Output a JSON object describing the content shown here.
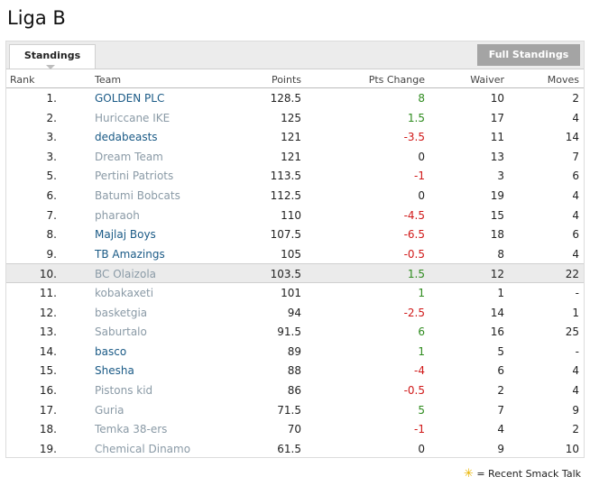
{
  "page": {
    "title": "Liga B"
  },
  "tabs": {
    "active": "Standings",
    "full_button": "Full Standings"
  },
  "columns": {
    "rank": "Rank",
    "team": "Team",
    "points": "Points",
    "pts_change": "Pts Change",
    "waiver": "Waiver",
    "moves": "Moves"
  },
  "colors": {
    "link": "#1a5a86",
    "dim": "#8a9aa6",
    "positive": "#2e8b1e",
    "negative": "#d01818"
  },
  "rows": [
    {
      "rank": "1.",
      "team": "GOLDEN PLC",
      "style": "link",
      "points": "128.5",
      "change": "8",
      "dir": "pos",
      "waiver": "10",
      "moves": "2"
    },
    {
      "rank": "2.",
      "team": "Huriccane IKE",
      "style": "dim",
      "points": "125",
      "change": "1.5",
      "dir": "pos",
      "waiver": "17",
      "moves": "4"
    },
    {
      "rank": "3.",
      "team": "dedabeasts",
      "style": "link",
      "points": "121",
      "change": "-3.5",
      "dir": "neg",
      "waiver": "11",
      "moves": "14"
    },
    {
      "rank": "3.",
      "team": "Dream Team",
      "style": "dim",
      "points": "121",
      "change": "0",
      "dir": "zero",
      "waiver": "13",
      "moves": "7"
    },
    {
      "rank": "5.",
      "team": "Pertini Patriots",
      "style": "dim",
      "points": "113.5",
      "change": "-1",
      "dir": "neg",
      "waiver": "3",
      "moves": "6"
    },
    {
      "rank": "6.",
      "team": "Batumi Bobcats",
      "style": "dim",
      "points": "112.5",
      "change": "0",
      "dir": "zero",
      "waiver": "19",
      "moves": "4"
    },
    {
      "rank": "7.",
      "team": "pharaoh",
      "style": "dim",
      "points": "110",
      "change": "-4.5",
      "dir": "neg",
      "waiver": "15",
      "moves": "4"
    },
    {
      "rank": "8.",
      "team": "Majlaj Boys",
      "style": "link",
      "points": "107.5",
      "change": "-6.5",
      "dir": "neg",
      "waiver": "18",
      "moves": "6"
    },
    {
      "rank": "9.",
      "team": "TB Amazings",
      "style": "link",
      "points": "105",
      "change": "-0.5",
      "dir": "neg",
      "waiver": "8",
      "moves": "4"
    },
    {
      "rank": "10.",
      "team": "BC Olaizola",
      "style": "dim",
      "points": "103.5",
      "change": "1.5",
      "dir": "pos",
      "waiver": "12",
      "moves": "22",
      "highlight": true
    },
    {
      "rank": "11.",
      "team": "kobakaxeti",
      "style": "dim",
      "points": "101",
      "change": "1",
      "dir": "pos",
      "waiver": "1",
      "moves": "-"
    },
    {
      "rank": "12.",
      "team": "basketgia",
      "style": "dim",
      "points": "94",
      "change": "-2.5",
      "dir": "neg",
      "waiver": "14",
      "moves": "1"
    },
    {
      "rank": "13.",
      "team": "Saburtalo",
      "style": "dim",
      "points": "91.5",
      "change": "6",
      "dir": "pos",
      "waiver": "16",
      "moves": "25"
    },
    {
      "rank": "14.",
      "team": "basco",
      "style": "link",
      "points": "89",
      "change": "1",
      "dir": "pos",
      "waiver": "5",
      "moves": "-"
    },
    {
      "rank": "15.",
      "team": "Shesha",
      "style": "link",
      "points": "88",
      "change": "-4",
      "dir": "neg",
      "waiver": "6",
      "moves": "4"
    },
    {
      "rank": "16.",
      "team": "Pistons kid",
      "style": "dim",
      "points": "86",
      "change": "-0.5",
      "dir": "neg",
      "waiver": "2",
      "moves": "4"
    },
    {
      "rank": "17.",
      "team": "Guria",
      "style": "dim",
      "points": "71.5",
      "change": "5",
      "dir": "pos",
      "waiver": "7",
      "moves": "9"
    },
    {
      "rank": "18.",
      "team": "Temka 38-ers",
      "style": "dim",
      "points": "70",
      "change": "-1",
      "dir": "neg",
      "waiver": "4",
      "moves": "2"
    },
    {
      "rank": "19.",
      "team": "Chemical Dinamo",
      "style": "dim",
      "points": "61.5",
      "change": "0",
      "dir": "zero",
      "waiver": "9",
      "moves": "10"
    }
  ],
  "legend": {
    "icon": "star-icon",
    "glyph": "✳",
    "text": "= Recent Smack Talk"
  }
}
